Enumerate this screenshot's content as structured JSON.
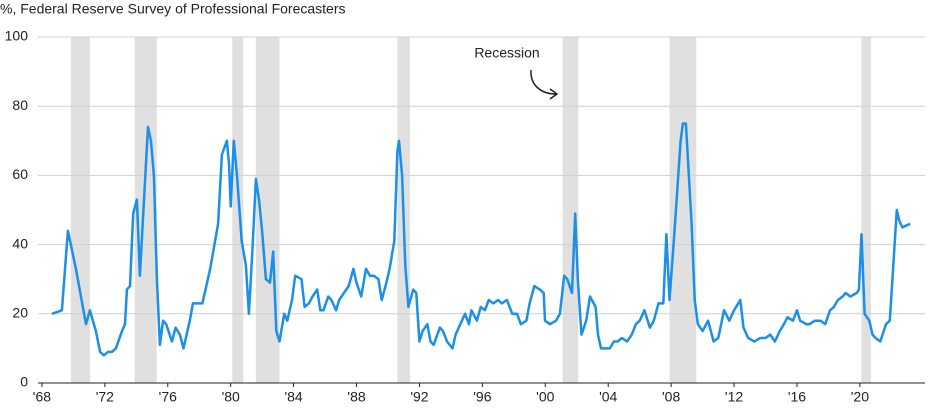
{
  "chart_data": {
    "type": "line",
    "subtitle": "%, Federal Reserve Survey of Professional Forecasters",
    "annotation": "Recession",
    "recessions": [
      [
        1969.84,
        1971.05
      ],
      [
        1973.9,
        1975.3
      ],
      [
        1980.1,
        1980.8
      ],
      [
        1981.6,
        1983.1
      ],
      [
        1990.6,
        1991.4
      ],
      [
        2001.1,
        2002.1
      ],
      [
        2007.9,
        2009.6
      ],
      [
        2020.1,
        2020.7
      ]
    ],
    "recession_color": "#e0e0e0",
    "series": [
      {
        "color": "#1c8fe8",
        "x": [
          1968.64,
          1969.27,
          1969.65,
          1970.16,
          1970.8,
          1971.05,
          1971.43,
          1971.7,
          1971.94,
          1972.2,
          1972.45,
          1972.7,
          1973.09,
          1973.28,
          1973.4,
          1973.6,
          1973.8,
          1974.04,
          1974.23,
          1974.5,
          1974.74,
          1974.93,
          1975.12,
          1975.31,
          1975.5,
          1975.7,
          1975.9,
          1976.26,
          1976.5,
          1976.77,
          1977.0,
          1977.4,
          1977.6,
          1977.9,
          1978.2,
          1978.7,
          1979.2,
          1979.44,
          1979.76,
          1979.9,
          1980.0,
          1980.2,
          1980.4,
          1980.7,
          1980.97,
          1981.16,
          1981.4,
          1981.6,
          1981.8,
          1982.0,
          1982.24,
          1982.5,
          1982.7,
          1982.9,
          1983.1,
          1983.4,
          1983.6,
          1983.9,
          1984.1,
          1984.5,
          1984.7,
          1984.97,
          1985.2,
          1985.5,
          1985.7,
          1985.9,
          1986.2,
          1986.4,
          1986.7,
          1986.9,
          1987.2,
          1987.5,
          1987.8,
          1988.0,
          1988.3,
          1988.6,
          1988.85,
          1989.1,
          1989.4,
          1989.6,
          1989.9,
          1990.1,
          1990.4,
          1990.6,
          1990.7,
          1990.9,
          1991.1,
          1991.3,
          1991.6,
          1991.8,
          1992.0,
          1992.2,
          1992.5,
          1992.7,
          1992.9,
          1993.3,
          1993.5,
          1993.75,
          1994.1,
          1994.3,
          1994.6,
          1994.9,
          1995.15,
          1995.3,
          1995.65,
          1995.9,
          1996.16,
          1996.4,
          1996.7,
          1997.0,
          1997.24,
          1997.56,
          1997.9,
          1998.2,
          1998.45,
          1998.8,
          1999.0,
          1999.3,
          1999.66,
          1999.9,
          1999.98,
          2000.3,
          2000.68,
          2000.93,
          2001.2,
          2001.4,
          2001.7,
          2001.9,
          2002.07,
          2002.3,
          2002.6,
          2002.84,
          2003.2,
          2003.35,
          2003.54,
          2003.86,
          2004.1,
          2004.36,
          2004.6,
          2004.87,
          2005.2,
          2005.5,
          2005.76,
          2006.0,
          2006.3,
          2006.65,
          2006.9,
          2007.2,
          2007.5,
          2007.7,
          2007.9,
          2008.2,
          2008.6,
          2008.75,
          2008.94,
          2009.3,
          2009.5,
          2009.7,
          2010.0,
          2010.35,
          2010.7,
          2011.0,
          2011.36,
          2011.7,
          2012.0,
          2012.4,
          2012.6,
          2012.9,
          2013.3,
          2013.65,
          2014.0,
          2014.3,
          2014.6,
          2014.9,
          2015.17,
          2015.4,
          2015.74,
          2016.0,
          2016.2,
          2016.6,
          2016.8,
          2017.14,
          2017.5,
          2017.8,
          2018.1,
          2018.35,
          2018.6,
          2018.9,
          2019.1,
          2019.4,
          2019.8,
          2019.94,
          2020.1,
          2020.3,
          2020.6,
          2020.8,
          2021.0,
          2021.3,
          2021.66,
          2021.9,
          2022.35,
          2022.5,
          2022.7,
          2023.2
        ],
        "values": [
          20,
          21,
          44,
          33,
          17,
          21,
          15,
          9,
          8,
          9,
          9,
          10,
          15,
          17,
          27,
          28,
          49,
          53,
          31,
          54,
          74,
          70,
          60,
          30,
          11,
          18,
          17,
          12,
          16,
          14,
          10,
          18,
          23,
          23,
          23,
          33,
          46,
          66,
          70,
          63,
          51,
          70,
          60,
          41,
          34,
          20,
          40,
          59,
          53,
          44,
          30,
          29,
          38,
          15,
          12,
          20,
          18,
          24,
          31,
          30,
          22,
          23,
          25,
          27,
          21,
          21,
          25,
          24,
          21,
          24,
          26,
          28,
          33,
          29,
          25,
          33,
          31,
          31,
          30,
          24,
          29,
          33,
          41,
          67,
          70,
          60,
          34,
          22,
          27,
          26,
          12,
          15,
          17,
          12,
          11,
          16,
          15,
          12,
          10,
          14,
          17,
          20,
          17,
          21,
          18,
          22,
          21,
          24,
          23,
          24,
          23,
          24,
          20,
          20,
          17,
          18,
          23,
          28,
          27,
          26,
          18,
          17,
          18,
          20,
          31,
          30,
          26,
          49,
          30,
          14,
          18,
          25,
          22,
          14,
          10,
          10,
          10,
          12,
          12,
          13,
          12,
          14,
          17,
          18,
          21,
          16,
          18,
          23,
          23,
          43,
          24,
          43,
          70,
          75,
          75,
          46,
          24,
          17,
          15,
          18,
          12,
          13,
          21,
          18,
          21,
          24,
          16,
          13,
          12,
          13,
          13,
          14,
          12,
          15,
          17,
          19,
          18,
          21,
          18,
          17,
          17,
          18,
          18,
          17,
          21,
          22,
          24,
          25,
          26,
          25,
          26,
          27,
          43,
          20,
          18,
          14,
          13,
          12,
          17,
          18,
          50,
          47,
          45,
          46
        ]
      }
    ],
    "xlim": [
      1967.75,
      2024.14
    ],
    "ylim": [
      0,
      100
    ],
    "xticks": [
      {
        "value": 1968,
        "label": "'68"
      },
      {
        "value": 1972,
        "label": "'72"
      },
      {
        "value": 1976,
        "label": "'76"
      },
      {
        "value": 1980,
        "label": "'80"
      },
      {
        "value": 1984,
        "label": "'84"
      },
      {
        "value": 1988,
        "label": "'88"
      },
      {
        "value": 1992,
        "label": "'92"
      },
      {
        "value": 1996,
        "label": "'96"
      },
      {
        "value": 2000,
        "label": "'00"
      },
      {
        "value": 2004,
        "label": "'04"
      },
      {
        "value": 2008,
        "label": "'08"
      },
      {
        "value": 2012,
        "label": "'12"
      },
      {
        "value": 2016,
        "label": "'16"
      },
      {
        "value": 2020,
        "label": "'20"
      }
    ],
    "yticks": [
      0,
      20,
      40,
      60,
      80,
      100
    ],
    "grid": true
  }
}
